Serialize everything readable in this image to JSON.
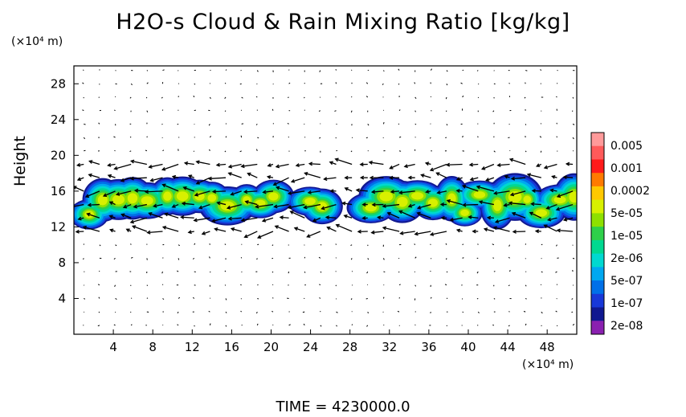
{
  "chart_data": {
    "type": "heatmap",
    "title": "H2O-s Cloud & Rain Mixing Ratio [kg/kg]",
    "xlabel": "",
    "ylabel": "Height",
    "x_unit": "(×10⁴ m)",
    "y_unit": "(×10⁴ m)",
    "x_ticks": [
      "4",
      "8",
      "12",
      "16",
      "20",
      "24",
      "28",
      "32",
      "36",
      "40",
      "44",
      "48"
    ],
    "y_ticks": [
      "4",
      "8",
      "12",
      "16",
      "20",
      "24",
      "28"
    ],
    "xlim": [
      0,
      51
    ],
    "ylim": [
      0,
      30
    ],
    "colorbar": {
      "labels": [
        "0.005",
        "0.001",
        "0.0002",
        "5e-05",
        "1e-05",
        "2e-06",
        "5e-07",
        "1e-07",
        "2e-08"
      ],
      "colors": [
        "#ff9a9a",
        "#ff5a5a",
        "#ff1a1a",
        "#ff7a00",
        "#ffc800",
        "#d8f000",
        "#8ee000",
        "#2ed04a",
        "#00d890",
        "#00d8d0",
        "#00a8f0",
        "#0070e8",
        "#1838d8",
        "#101890",
        "#8a20b0"
      ]
    },
    "cloud_band": {
      "y_bottom": 11.5,
      "y_top": 18.5,
      "x_start": 0,
      "x_end": 51
    },
    "footer": "TIME  =  4230000.0"
  }
}
